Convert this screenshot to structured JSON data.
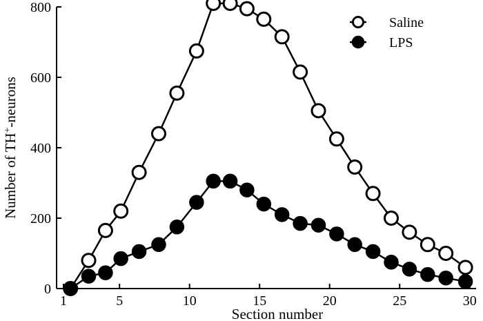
{
  "chart_data": {
    "type": "line",
    "title": "",
    "xlabel": "Section number",
    "ylabel_main": "Number of TH",
    "ylabel_sup": "+",
    "ylabel_tail": "-neurons",
    "xlim": [
      1,
      30.5
    ],
    "ylim": [
      0,
      800
    ],
    "xticks": [
      1,
      5,
      10,
      15,
      20,
      25,
      30
    ],
    "yticks": [
      0,
      200,
      400,
      600,
      800
    ],
    "legend_position": "top-right",
    "series": [
      {
        "name": "Saline",
        "marker": "open-circle",
        "x": [
          1.5,
          2.8,
          4.0,
          5.1,
          6.4,
          7.8,
          9.1,
          10.5,
          11.7,
          12.9,
          14.1,
          15.3,
          16.6,
          17.9,
          19.2,
          20.5,
          21.8,
          23.1,
          24.4,
          25.7,
          27.0,
          28.3,
          29.7
        ],
        "values": [
          0,
          80,
          165,
          220,
          330,
          440,
          555,
          675,
          810,
          810,
          795,
          765,
          715,
          615,
          505,
          425,
          345,
          270,
          200,
          160,
          125,
          100,
          60
        ]
      },
      {
        "name": "LPS",
        "marker": "filled-circle",
        "x": [
          1.5,
          2.8,
          4.0,
          5.1,
          6.4,
          7.8,
          9.1,
          10.5,
          11.7,
          12.9,
          14.1,
          15.3,
          16.6,
          17.9,
          19.2,
          20.5,
          21.8,
          23.1,
          24.4,
          25.7,
          27.0,
          28.3,
          29.7
        ],
        "values": [
          0,
          35,
          45,
          85,
          105,
          125,
          175,
          245,
          305,
          305,
          280,
          240,
          210,
          185,
          180,
          155,
          125,
          105,
          75,
          55,
          40,
          30,
          20
        ]
      }
    ]
  }
}
